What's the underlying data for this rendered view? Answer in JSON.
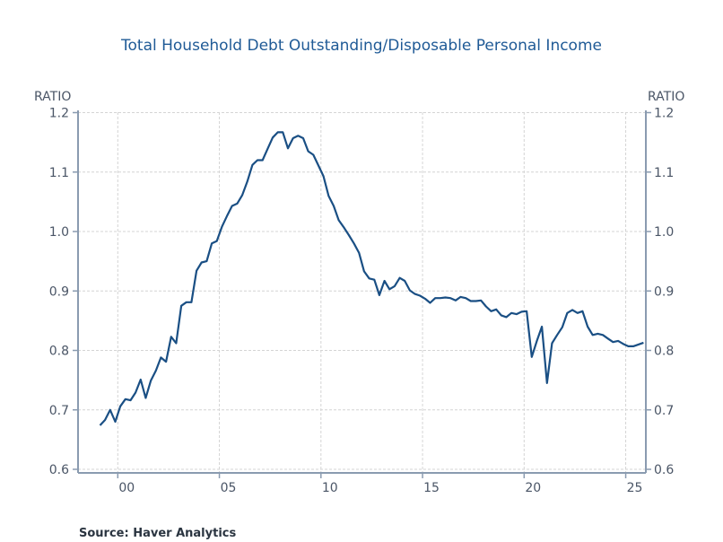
{
  "chart_data": {
    "type": "line",
    "title": "Total Household Debt Outstanding/Disposable Personal Income",
    "ylabel_left": "RATIO",
    "ylabel_right": "RATIO",
    "source": "Source:  Haver Analytics",
    "xlabel": "",
    "x_tick_labels": [
      "00",
      "05",
      "10",
      "15",
      "20",
      "25"
    ],
    "x_tick_years": [
      2000,
      2005,
      2010,
      2015,
      2020,
      2025
    ],
    "xlim": [
      1998.6,
      2026.0
    ],
    "y_tick_labels": [
      "0.6",
      "0.7",
      "0.8",
      "0.9",
      "1.0",
      "1.1",
      "1.2"
    ],
    "ylim": [
      0.6,
      1.2
    ],
    "grid": true,
    "line_color": "#1a4f84",
    "start_quarter": "1999Q1",
    "frequency": "quarterly",
    "values": [
      0.674,
      0.683,
      0.7,
      0.68,
      0.706,
      0.718,
      0.716,
      0.729,
      0.751,
      0.72,
      0.749,
      0.766,
      0.788,
      0.781,
      0.823,
      0.812,
      0.875,
      0.881,
      0.881,
      0.934,
      0.948,
      0.95,
      0.98,
      0.984,
      1.008,
      1.026,
      1.043,
      1.047,
      1.061,
      1.084,
      1.112,
      1.12,
      1.12,
      1.139,
      1.158,
      1.167,
      1.167,
      1.14,
      1.157,
      1.161,
      1.157,
      1.135,
      1.129,
      1.111,
      1.093,
      1.06,
      1.043,
      1.019,
      1.007,
      0.994,
      0.98,
      0.964,
      0.933,
      0.921,
      0.919,
      0.893,
      0.917,
      0.903,
      0.908,
      0.922,
      0.917,
      0.901,
      0.895,
      0.892,
      0.887,
      0.88,
      0.888,
      0.888,
      0.889,
      0.888,
      0.884,
      0.89,
      0.888,
      0.883,
      0.883,
      0.884,
      0.874,
      0.866,
      0.869,
      0.859,
      0.856,
      0.863,
      0.861,
      0.865,
      0.866,
      0.789,
      0.816,
      0.84,
      0.745,
      0.812,
      0.826,
      0.839,
      0.863,
      0.868,
      0.863,
      0.866,
      0.84,
      0.826,
      0.828,
      0.826,
      0.82,
      0.814,
      0.816,
      0.811,
      0.807,
      0.807,
      0.81,
      0.813
    ]
  }
}
